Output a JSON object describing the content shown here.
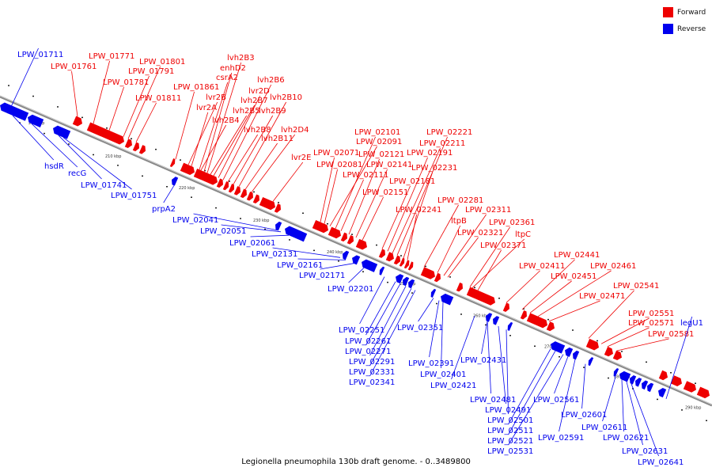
{
  "legend": {
    "forward_label": "Forward",
    "reverse_label": "Reverse",
    "forward_color": "#ee0000",
    "reverse_color": "#0000ee"
  },
  "caption": "Legionella pneumophila 130b draft genome. - 0..3489800",
  "colors": {
    "forward": "#ee0000",
    "reverse": "#0000ee",
    "axis": "#888888"
  },
  "ticks": [
    "200 kbp",
    "210 kbp",
    "220 kbp",
    "230 kbp",
    "240 kbp",
    "250 kbp",
    "260 kbp",
    "270 kbp",
    "280 kbp",
    "290 kbp"
  ],
  "forward_genes": [
    "LPW_01761",
    "LPW_01771",
    "LPW_01781",
    "LPW_01791",
    "LPW_01801",
    "LPW_01811",
    "LPW_01861",
    "lvr2B",
    "lvr2A",
    "lvh2B4",
    "csrA2",
    "enhD2",
    "lvh2B3",
    "lvh2B5",
    "lvh2B7",
    "lvr2D",
    "lvh2B6",
    "lvh2B8",
    "lvh2B9",
    "lvh2B10",
    "lvh2B11",
    "lvh2D4",
    "lvr2E",
    "LPW_02071",
    "LPW_02081",
    "LPW_02091",
    "LPW_02101",
    "LPW_02111",
    "LPW_02121",
    "LPW_02141",
    "LPW_02151",
    "LPW_02181",
    "LPW_02191",
    "LPW_02211",
    "LPW_02221",
    "LPW_02231",
    "LPW_02241",
    "LPW_02281",
    "ltpB",
    "LPW_02311",
    "LPW_02321",
    "LPW_02361",
    "ltpC",
    "LPW_02371",
    "LPW_02411",
    "LPW_02441",
    "LPW_02451",
    "LPW_02461",
    "LPW_02471",
    "LPW_02541",
    "LPW_02551",
    "LPW_02571",
    "LPW_02581"
  ],
  "reverse_genes": [
    "LPW_01711",
    "hsdR",
    "recG",
    "LPW_01741",
    "LPW_01751",
    "prpA2",
    "LPW_02041",
    "LPW_02051",
    "LPW_02061",
    "LPW_02131",
    "LPW_02161",
    "LPW_02171",
    "LPW_02201",
    "LPW_02251",
    "LPW_02261",
    "LPW_02271",
    "LPW_02291",
    "LPW_02331",
    "LPW_02341",
    "LPW_02351",
    "LPW_02391",
    "LPW_02401",
    "LPW_02421",
    "LPW_02431",
    "LPW_02481",
    "LPW_02491",
    "LPW_02501",
    "LPW_02511",
    "LPW_02521",
    "LPW_02531",
    "LPW_02561",
    "LPW_02591",
    "LPW_02601",
    "LPW_02611",
    "LPW_02621",
    "LPW_02631",
    "LPW_02641",
    "legU1"
  ]
}
